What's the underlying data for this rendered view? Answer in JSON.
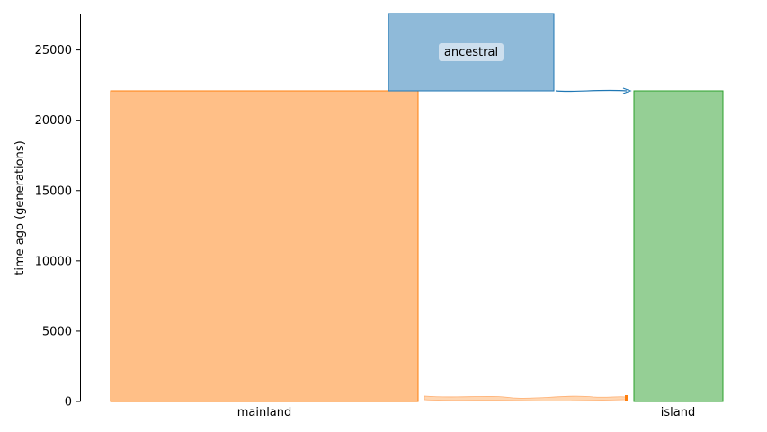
{
  "chart_data": {
    "type": "demography",
    "ylabel": "time ago (generations)",
    "ylim": [
      0,
      27600
    ],
    "yticks": [
      0,
      5000,
      10000,
      15000,
      20000,
      25000
    ],
    "demes": [
      {
        "name": "ancestral",
        "start_time": 27600,
        "end_time": 22100,
        "label_inside": "ancestral",
        "fill": "#8fbad9",
        "stroke": "#1f77b4"
      },
      {
        "name": "mainland",
        "start_time": 22100,
        "end_time": 0,
        "label_inside": "",
        "fill": "#ffbf87",
        "stroke": "#ff7f0e"
      },
      {
        "name": "island",
        "start_time": 22100,
        "end_time": 0,
        "label_inside": "",
        "fill": "#95cf95",
        "stroke": "#2ca02c"
      }
    ],
    "xtick_labels": [
      "mainland",
      "island"
    ],
    "migrations": [
      {
        "source": "ancestral",
        "dest": "island",
        "time": 22100,
        "color": "#1f77b4"
      },
      {
        "source": "mainland",
        "dest": "island",
        "time_start": 300,
        "time_end": 0,
        "color": "#ff7f0e"
      }
    ]
  }
}
